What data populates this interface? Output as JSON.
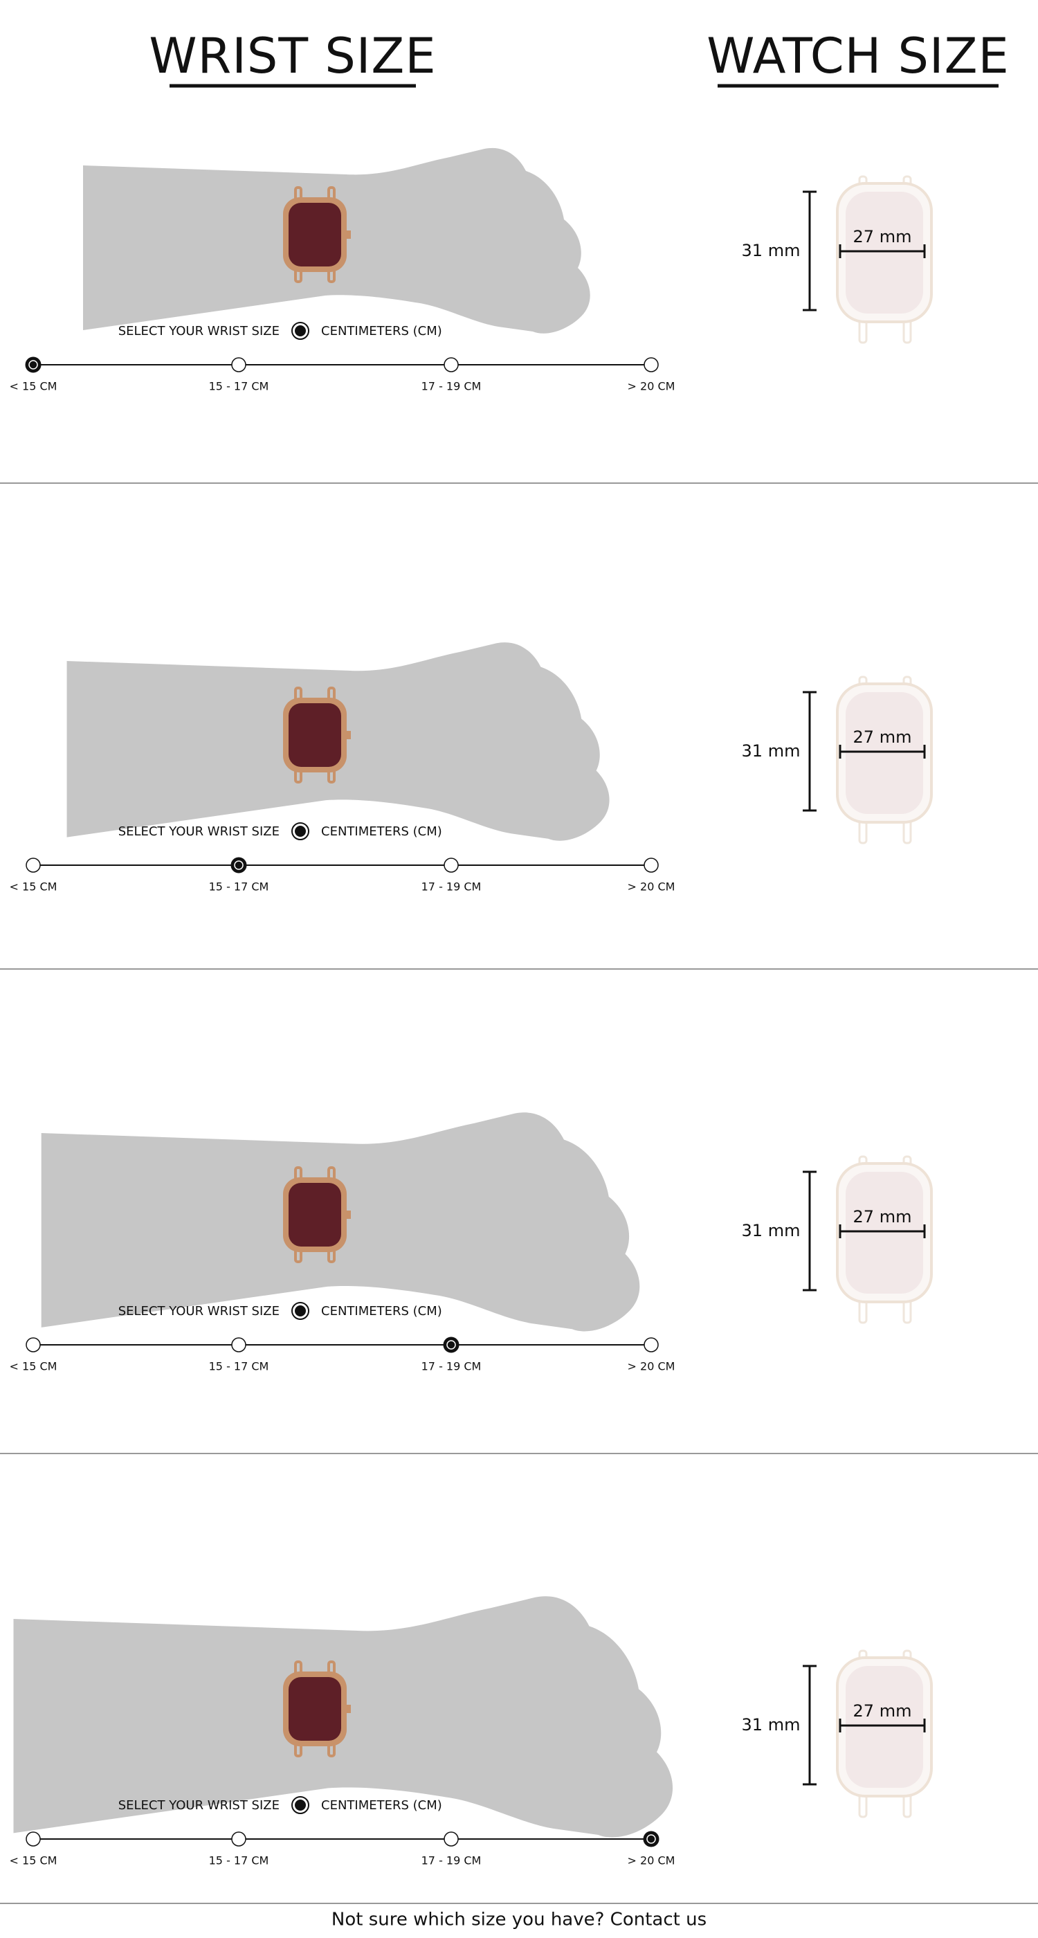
{
  "header": {
    "wrist_title": "WRIST SIZE",
    "watch_title": "WATCH SIZE"
  },
  "panels": [
    {
      "prompt": "SELECT YOUR WRIST SIZE",
      "unit": "CENTIMETERS (CM)",
      "options": [
        "< 15 CM",
        "15 - 17 CM",
        "17 - 19 CM",
        "> 20 CM"
      ],
      "selected": 0,
      "watch_height": "31 mm",
      "watch_width": "27 mm"
    },
    {
      "prompt": "SELECT YOUR WRIST SIZE",
      "unit": "CENTIMETERS (CM)",
      "options": [
        "< 15 CM",
        "15 - 17 CM",
        "17 - 19 CM",
        "> 20 CM"
      ],
      "selected": 1,
      "watch_height": "31 mm",
      "watch_width": "27 mm"
    },
    {
      "prompt": "SELECT YOUR WRIST SIZE",
      "unit": "CENTIMETERS (CM)",
      "options": [
        "< 15 CM",
        "15 - 17 CM",
        "17 - 19 CM",
        "> 20 CM"
      ],
      "selected": 2,
      "watch_height": "31 mm",
      "watch_width": "27 mm"
    },
    {
      "prompt": "SELECT YOUR WRIST SIZE",
      "unit": "CENTIMETERS (CM)",
      "options": [
        "< 15 CM",
        "15 - 17 CM",
        "17 - 19 CM",
        "> 20 CM"
      ],
      "selected": 3,
      "watch_height": "31 mm",
      "watch_width": "27 mm"
    }
  ],
  "footer": "Not sure which size you have? Contact us"
}
